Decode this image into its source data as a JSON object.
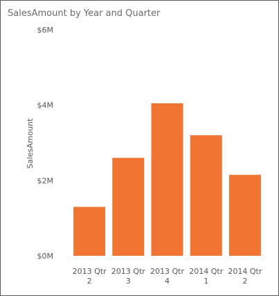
{
  "chart_data": {
    "type": "bar",
    "title": "SalesAmount by Year and Quarter",
    "xlabel": "",
    "ylabel": "SalesAmount",
    "categories": [
      [
        "2013 Qtr",
        "2"
      ],
      [
        "2013 Qtr",
        "3"
      ],
      [
        "2013 Qtr",
        "4"
      ],
      [
        "2014 Qtr",
        "1"
      ],
      [
        "2014 Qtr",
        "2"
      ]
    ],
    "values": [
      1.3,
      2.6,
      4.05,
      3.2,
      2.15
    ],
    "ylim": [
      0,
      6
    ],
    "yticks": [
      {
        "value": 0,
        "label": "$0M"
      },
      {
        "value": 2,
        "label": "$2M"
      },
      {
        "value": 4,
        "label": "$4M"
      },
      {
        "value": 6,
        "label": "$6M"
      }
    ],
    "grid": false,
    "bar_color": "#F07533"
  }
}
